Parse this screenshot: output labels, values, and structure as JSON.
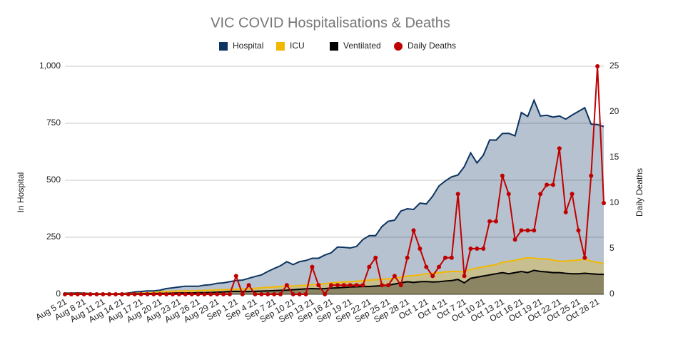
{
  "chart_data": {
    "type": "area",
    "title": "VIC COVID Hospitalisations & Deaths",
    "y_label": "In Hospital",
    "y2_label": "Daily Deaths",
    "categories": [
      "Aug 5 21",
      null,
      null,
      "Aug 8 21",
      null,
      null,
      "Aug 11 21",
      null,
      null,
      "Aug 14 21",
      null,
      null,
      "Aug 17 21",
      null,
      null,
      "Aug 20 21",
      null,
      null,
      "Aug 23 21",
      null,
      null,
      "Aug 26 21",
      null,
      null,
      "Aug 29 21",
      null,
      null,
      "Sep 1 21",
      null,
      null,
      "Sep 4 21",
      null,
      null,
      "Sep 7 21",
      null,
      null,
      "Sep 10 21",
      null,
      null,
      "Sep 13 21",
      null,
      null,
      "Sep 16 21",
      null,
      null,
      "Sep 19 21",
      null,
      null,
      "Sep 22 21",
      null,
      null,
      "Sep 25 21",
      null,
      null,
      "Sep 28 21",
      null,
      null,
      "Oct 1 21",
      null,
      null,
      "Oct 4 21",
      null,
      null,
      "Oct 7 21",
      null,
      null,
      "Oct 10 21",
      null,
      null,
      "Oct 13 21",
      null,
      null,
      "Oct 16 21",
      null,
      null,
      "Oct 19 21",
      null,
      null,
      "Oct 22 21",
      null,
      null,
      "Oct 25 21",
      null,
      null,
      "Oct 28 21",
      null
    ],
    "series": [
      {
        "name": "Hospital",
        "type": "area",
        "color": "#0d3561",
        "values": [
          5,
          5,
          6,
          5,
          3,
          2,
          2,
          2,
          2,
          3,
          5,
          10,
          12,
          15,
          15,
          18,
          25,
          28,
          32,
          35,
          35,
          35,
          40,
          42,
          48,
          50,
          55,
          60,
          62,
          70,
          78,
          85,
          100,
          113,
          125,
          143,
          130,
          143,
          148,
          158,
          158,
          172,
          182,
          207,
          206,
          203,
          210,
          240,
          257,
          257,
          297,
          320,
          325,
          365,
          375,
          372,
          400,
          396,
          430,
          475,
          497,
          515,
          523,
          560,
          620,
          576,
          610,
          677,
          676,
          705,
          706,
          695,
          797,
          780,
          851,
          782,
          785,
          777,
          782,
          768,
          786,
          802,
          818,
          746,
          744,
          736
        ]
      },
      {
        "name": "ICU",
        "type": "area",
        "color": "#f2b800",
        "values": [
          3,
          3,
          3,
          3,
          2,
          2,
          2,
          2,
          2,
          2,
          3,
          4,
          5,
          6,
          7,
          10,
          12,
          13,
          14,
          15,
          15,
          16,
          17,
          18,
          19,
          20,
          21,
          22,
          24,
          25,
          26,
          28,
          30,
          32,
          34,
          36,
          36,
          38,
          40,
          42,
          44,
          46,
          50,
          52,
          54,
          55,
          57,
          60,
          62,
          64,
          66,
          68,
          70,
          75,
          80,
          82,
          85,
          90,
          92,
          95,
          98,
          100,
          100,
          98,
          110,
          115,
          120,
          125,
          130,
          140,
          145,
          148,
          155,
          160,
          158,
          155,
          155,
          150,
          145,
          145,
          148,
          150,
          155,
          145,
          140,
          135
        ]
      },
      {
        "name": "Ventilated",
        "type": "area",
        "color": "#000000",
        "values": [
          2,
          2,
          2,
          2,
          1,
          1,
          1,
          1,
          1,
          1,
          1,
          2,
          2,
          3,
          3,
          4,
          4,
          5,
          6,
          6,
          6,
          7,
          7,
          8,
          9,
          10,
          12,
          13,
          12,
          12,
          13,
          14,
          15,
          16,
          17,
          18,
          20,
          22,
          24,
          25,
          24,
          25,
          27,
          28,
          30,
          32,
          33,
          34,
          34,
          36,
          38,
          40,
          45,
          50,
          55,
          52,
          55,
          56,
          54,
          55,
          58,
          60,
          65,
          50,
          70,
          75,
          80,
          85,
          90,
          95,
          90,
          95,
          100,
          95,
          105,
          100,
          98,
          95,
          95,
          92,
          90,
          90,
          92,
          90,
          88,
          87
        ]
      },
      {
        "name": "Daily Deaths",
        "type": "line",
        "axis": "y2",
        "color": "#c00000",
        "values": [
          0,
          0,
          0,
          0,
          0,
          0,
          0,
          0,
          0,
          0,
          0,
          0,
          0,
          0,
          0,
          0,
          0,
          0,
          0,
          0,
          0,
          0,
          0,
          0,
          0,
          0,
          0,
          2,
          0,
          1,
          0,
          0,
          0,
          0,
          0,
          1,
          0,
          0,
          0,
          3,
          1,
          0,
          1,
          1,
          1,
          1,
          1,
          1,
          3,
          4,
          1,
          1,
          2,
          1,
          4,
          7,
          5,
          3,
          2,
          3,
          4,
          4,
          11,
          2,
          5,
          5,
          5,
          8,
          8,
          13,
          11,
          6,
          7,
          7,
          7,
          11,
          12,
          12,
          16,
          9,
          11,
          7,
          4,
          13,
          25,
          10
        ]
      }
    ],
    "ylim": [
      0,
      1000
    ],
    "yticks": [
      0,
      250,
      500,
      750,
      {
        "value": 1000,
        "label": "1,000"
      }
    ],
    "y2lim": [
      0,
      25
    ],
    "y2ticks": [
      0,
      5,
      10,
      15,
      20,
      25
    ],
    "grid": true
  }
}
